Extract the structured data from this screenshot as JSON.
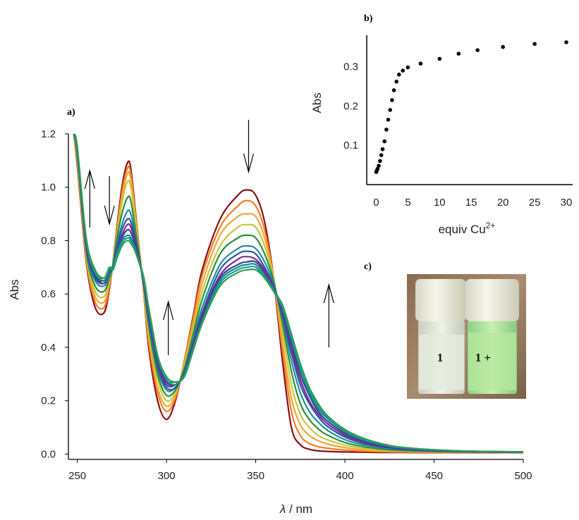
{
  "colors": {
    "axis": "#000000",
    "spectra": [
      "#8b0d14",
      "#f57e1e",
      "#f2a43a",
      "#c9c739",
      "#2a8d3a",
      "#1c8f9c",
      "#2456a6",
      "#7d2b8e",
      "#3a3f97",
      "#0f8c84",
      "#1d9b9b",
      "#2f9c52"
    ],
    "arrow": "#000000"
  },
  "panel_labels": {
    "a": "a)",
    "b": "b)",
    "c": "c)"
  },
  "photo": {
    "vial_1_label": "1",
    "vial_2_label": "1 +"
  },
  "chart_data": [
    {
      "id": "a",
      "type": "line",
      "xlabel_italic": "λ",
      "xlabel_rest": " / nm",
      "ylabel": "Abs",
      "xlim": [
        245,
        500
      ],
      "ylim": [
        -0.02,
        1.2
      ],
      "xticks": [
        250,
        300,
        350,
        400,
        450,
        500
      ],
      "yticks": [
        "0.0",
        "0.2",
        "0.4",
        "0.6",
        "0.8",
        "1.0",
        "1.2"
      ],
      "grid": false,
      "legend": "none",
      "annotations": [
        {
          "type": "arrow",
          "direction": "up",
          "x": 257
        },
        {
          "type": "arrow",
          "direction": "down",
          "x": 268
        },
        {
          "type": "arrow",
          "direction": "up",
          "x": 301
        },
        {
          "type": "arrow",
          "direction": "down",
          "x": 346
        },
        {
          "type": "arrow",
          "direction": "up",
          "x": 391
        }
      ],
      "x": [
        248,
        250,
        255,
        260,
        265,
        268,
        270,
        272,
        275,
        278,
        280,
        283,
        287,
        290,
        295,
        300,
        305,
        310,
        315,
        320,
        330,
        340,
        345,
        350,
        355,
        360,
        365,
        370,
        375,
        380,
        385,
        390,
        400,
        410,
        420,
        430,
        450,
        470,
        500
      ],
      "series": [
        {
          "values": [
            1.2,
            1.08,
            0.72,
            0.55,
            0.53,
            0.62,
            0.72,
            0.84,
            1.0,
            1.09,
            1.07,
            0.88,
            0.62,
            0.4,
            0.2,
            0.13,
            0.2,
            0.35,
            0.52,
            0.69,
            0.88,
            0.97,
            0.99,
            0.97,
            0.87,
            0.66,
            0.35,
            0.1,
            0.035,
            0.018,
            0.012,
            0.01,
            0.008,
            0.007,
            0.006,
            0.006,
            0.005,
            0.005,
            0.005
          ]
        },
        {
          "values": [
            1.2,
            1.09,
            0.73,
            0.57,
            0.55,
            0.63,
            0.72,
            0.83,
            0.98,
            1.07,
            1.05,
            0.87,
            0.62,
            0.42,
            0.23,
            0.16,
            0.21,
            0.35,
            0.51,
            0.67,
            0.85,
            0.93,
            0.95,
            0.93,
            0.84,
            0.66,
            0.39,
            0.16,
            0.07,
            0.04,
            0.028,
            0.022,
            0.015,
            0.011,
            0.009,
            0.008,
            0.006,
            0.006,
            0.005
          ]
        },
        {
          "values": [
            1.2,
            1.1,
            0.74,
            0.59,
            0.57,
            0.64,
            0.72,
            0.82,
            0.96,
            1.05,
            1.03,
            0.86,
            0.62,
            0.44,
            0.25,
            0.18,
            0.22,
            0.34,
            0.49,
            0.64,
            0.82,
            0.89,
            0.9,
            0.89,
            0.81,
            0.66,
            0.42,
            0.21,
            0.11,
            0.07,
            0.05,
            0.038,
            0.024,
            0.016,
            0.012,
            0.01,
            0.008,
            0.007,
            0.006
          ]
        },
        {
          "values": [
            1.2,
            1.11,
            0.75,
            0.61,
            0.59,
            0.65,
            0.72,
            0.81,
            0.94,
            1.02,
            1.0,
            0.85,
            0.63,
            0.46,
            0.28,
            0.2,
            0.23,
            0.33,
            0.47,
            0.61,
            0.78,
            0.85,
            0.86,
            0.85,
            0.78,
            0.66,
            0.46,
            0.26,
            0.15,
            0.1,
            0.07,
            0.054,
            0.033,
            0.022,
            0.015,
            0.012,
            0.009,
            0.008,
            0.006
          ]
        },
        {
          "values": [
            1.2,
            1.12,
            0.76,
            0.63,
            0.61,
            0.66,
            0.71,
            0.8,
            0.9,
            0.96,
            0.95,
            0.82,
            0.64,
            0.48,
            0.3,
            0.22,
            0.24,
            0.32,
            0.45,
            0.58,
            0.75,
            0.81,
            0.82,
            0.81,
            0.75,
            0.65,
            0.49,
            0.31,
            0.19,
            0.13,
            0.095,
            0.072,
            0.043,
            0.028,
            0.019,
            0.014,
            0.01,
            0.008,
            0.006
          ]
        },
        {
          "values": [
            1.2,
            1.13,
            0.77,
            0.65,
            0.63,
            0.67,
            0.71,
            0.78,
            0.86,
            0.91,
            0.9,
            0.8,
            0.64,
            0.5,
            0.32,
            0.24,
            0.25,
            0.31,
            0.43,
            0.55,
            0.71,
            0.77,
            0.78,
            0.77,
            0.72,
            0.64,
            0.51,
            0.35,
            0.23,
            0.16,
            0.12,
            0.09,
            0.054,
            0.035,
            0.024,
            0.017,
            0.011,
            0.009,
            0.007
          ]
        },
        {
          "values": [
            1.2,
            1.13,
            0.78,
            0.66,
            0.64,
            0.68,
            0.7,
            0.77,
            0.84,
            0.88,
            0.87,
            0.79,
            0.65,
            0.51,
            0.33,
            0.25,
            0.25,
            0.31,
            0.42,
            0.53,
            0.69,
            0.75,
            0.76,
            0.75,
            0.7,
            0.63,
            0.52,
            0.38,
            0.26,
            0.19,
            0.14,
            0.105,
            0.064,
            0.041,
            0.028,
            0.02,
            0.012,
            0.009,
            0.007
          ]
        },
        {
          "values": [
            1.2,
            1.14,
            0.78,
            0.67,
            0.64,
            0.69,
            0.7,
            0.76,
            0.82,
            0.86,
            0.85,
            0.78,
            0.65,
            0.52,
            0.34,
            0.26,
            0.26,
            0.3,
            0.41,
            0.52,
            0.67,
            0.73,
            0.74,
            0.73,
            0.69,
            0.63,
            0.53,
            0.4,
            0.28,
            0.2,
            0.15,
            0.115,
            0.07,
            0.045,
            0.03,
            0.021,
            0.013,
            0.01,
            0.007
          ]
        },
        {
          "values": [
            1.2,
            1.14,
            0.79,
            0.67,
            0.65,
            0.69,
            0.7,
            0.75,
            0.81,
            0.84,
            0.83,
            0.77,
            0.66,
            0.53,
            0.35,
            0.27,
            0.26,
            0.3,
            0.4,
            0.51,
            0.66,
            0.71,
            0.72,
            0.72,
            0.68,
            0.62,
            0.54,
            0.42,
            0.3,
            0.22,
            0.16,
            0.125,
            0.077,
            0.05,
            0.033,
            0.023,
            0.014,
            0.01,
            0.008
          ]
        },
        {
          "values": [
            1.2,
            1.14,
            0.8,
            0.68,
            0.65,
            0.69,
            0.7,
            0.75,
            0.8,
            0.82,
            0.81,
            0.76,
            0.66,
            0.54,
            0.36,
            0.28,
            0.26,
            0.3,
            0.4,
            0.5,
            0.65,
            0.7,
            0.71,
            0.71,
            0.67,
            0.62,
            0.55,
            0.43,
            0.32,
            0.23,
            0.17,
            0.135,
            0.083,
            0.054,
            0.036,
            0.025,
            0.015,
            0.011,
            0.008
          ]
        },
        {
          "values": [
            1.2,
            1.15,
            0.8,
            0.68,
            0.66,
            0.7,
            0.69,
            0.74,
            0.79,
            0.81,
            0.8,
            0.75,
            0.66,
            0.55,
            0.37,
            0.28,
            0.27,
            0.29,
            0.39,
            0.49,
            0.64,
            0.69,
            0.7,
            0.7,
            0.66,
            0.61,
            0.55,
            0.44,
            0.33,
            0.24,
            0.18,
            0.14,
            0.088,
            0.057,
            0.038,
            0.026,
            0.016,
            0.011,
            0.008
          ]
        },
        {
          "values": [
            1.2,
            1.15,
            0.81,
            0.69,
            0.66,
            0.7,
            0.69,
            0.73,
            0.78,
            0.8,
            0.79,
            0.75,
            0.67,
            0.55,
            0.37,
            0.29,
            0.27,
            0.29,
            0.39,
            0.49,
            0.63,
            0.68,
            0.69,
            0.69,
            0.66,
            0.61,
            0.56,
            0.45,
            0.34,
            0.25,
            0.19,
            0.145,
            0.092,
            0.06,
            0.04,
            0.027,
            0.016,
            0.011,
            0.008
          ]
        }
      ]
    },
    {
      "id": "b",
      "type": "scatter",
      "xlabel": "equiv Cu",
      "xlabel_sup": "2+",
      "ylabel": "Abs",
      "xlim": [
        -1.5,
        31
      ],
      "ylim": [
        0.0,
        0.38
      ],
      "xticks": [
        0,
        5,
        10,
        15,
        20,
        25,
        30
      ],
      "yticks": [
        "0.1",
        "0.2",
        "0.3"
      ],
      "grid": false,
      "legend": "none",
      "x": [
        0,
        0.1,
        0.2,
        0.4,
        0.6,
        0.8,
        1.0,
        1.3,
        1.6,
        1.9,
        2.2,
        2.5,
        2.8,
        3.2,
        3.6,
        4.2,
        5.0,
        7.0,
        10.0,
        13.0,
        16.0,
        20.0,
        25.0,
        30.0
      ],
      "y": [
        0.032,
        0.036,
        0.04,
        0.048,
        0.06,
        0.075,
        0.09,
        0.11,
        0.14,
        0.165,
        0.19,
        0.215,
        0.24,
        0.262,
        0.28,
        0.29,
        0.298,
        0.308,
        0.32,
        0.333,
        0.342,
        0.35,
        0.358,
        0.362
      ]
    }
  ]
}
